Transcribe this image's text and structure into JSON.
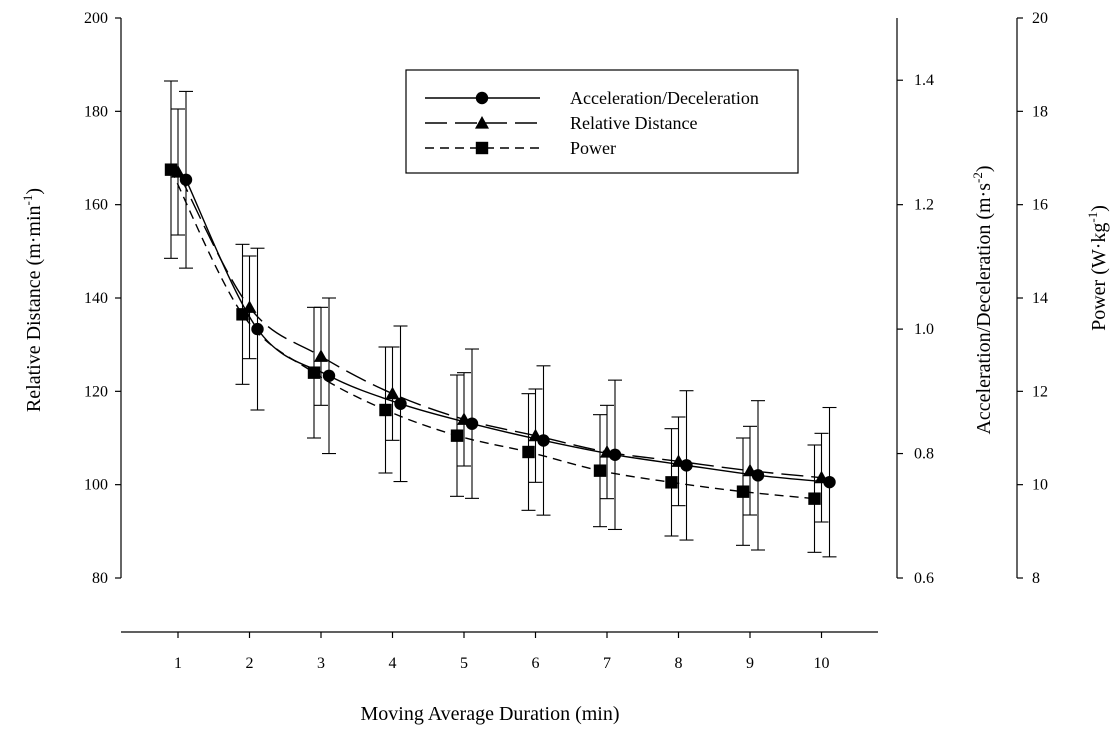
{
  "chart_data": {
    "type": "line",
    "x_axis": {
      "label": "Moving Average Duration (min)",
      "ticks": [
        1,
        2,
        3,
        4,
        5,
        6,
        7,
        8,
        9,
        10
      ],
      "range": [
        0.2,
        10.8
      ]
    },
    "y_axes": {
      "left": {
        "label_main": "Relative Distance (m·min",
        "label_sup": "-1",
        "label_end": ")",
        "range": [
          80,
          200
        ],
        "ticks": [
          80,
          100,
          120,
          140,
          160,
          180,
          200
        ]
      },
      "right1": {
        "label_main": "Acceleration/Deceleration (m·s",
        "label_sup": "-2",
        "label_end": ")",
        "range": [
          0.6,
          1.5
        ],
        "ticks": [
          0.6,
          0.8,
          1.0,
          1.2,
          1.4
        ],
        "tick_labels": [
          "0.6",
          "0.8",
          "1.0",
          "1.2",
          "1.4"
        ]
      },
      "right2": {
        "label_main": "Power (W·kg",
        "label_sup": "-1",
        "label_end": ")",
        "range": [
          8,
          20
        ],
        "ticks": [
          8,
          10,
          12,
          14,
          16,
          18,
          20
        ]
      }
    },
    "legend": {
      "position": "top-right",
      "entries": [
        "Acceleration/Deceleration",
        "Relative Distance",
        "Power"
      ]
    },
    "series": [
      {
        "name": "Acceleration/Deceleration",
        "marker": "circle",
        "line_style": "solid",
        "axis": "right1",
        "x": [
          1,
          2,
          3,
          4,
          5,
          6,
          7,
          8,
          9,
          10
        ],
        "y": [
          1.24,
          1.0,
          0.925,
          0.88,
          0.848,
          0.821,
          0.798,
          0.781,
          0.765,
          0.754
        ],
        "err": [
          0.142,
          0.13,
          0.125,
          0.125,
          0.12,
          0.12,
          0.12,
          0.12,
          0.12,
          0.12
        ]
      },
      {
        "name": "Relative Distance",
        "marker": "triangle",
        "line_style": "long-dash",
        "axis": "left",
        "x": [
          1,
          2,
          3,
          4,
          5,
          6,
          7,
          8,
          9,
          10
        ],
        "y": [
          167,
          138,
          127.5,
          119.5,
          114,
          110.5,
          107,
          105,
          103,
          101.5
        ],
        "err": [
          13.5,
          11,
          10.5,
          10,
          10,
          10,
          10,
          9.5,
          9.5,
          9.5
        ]
      },
      {
        "name": "Power",
        "marker": "square",
        "line_style": "short-dash",
        "axis": "right2",
        "x": [
          1,
          2,
          3,
          4,
          5,
          6,
          7,
          8,
          9,
          10
        ],
        "y": [
          16.75,
          13.65,
          12.4,
          11.6,
          11.05,
          10.7,
          10.3,
          10.05,
          9.85,
          9.7
        ],
        "err": [
          1.9,
          1.5,
          1.4,
          1.35,
          1.3,
          1.25,
          1.2,
          1.15,
          1.15,
          1.15
        ]
      }
    ]
  }
}
